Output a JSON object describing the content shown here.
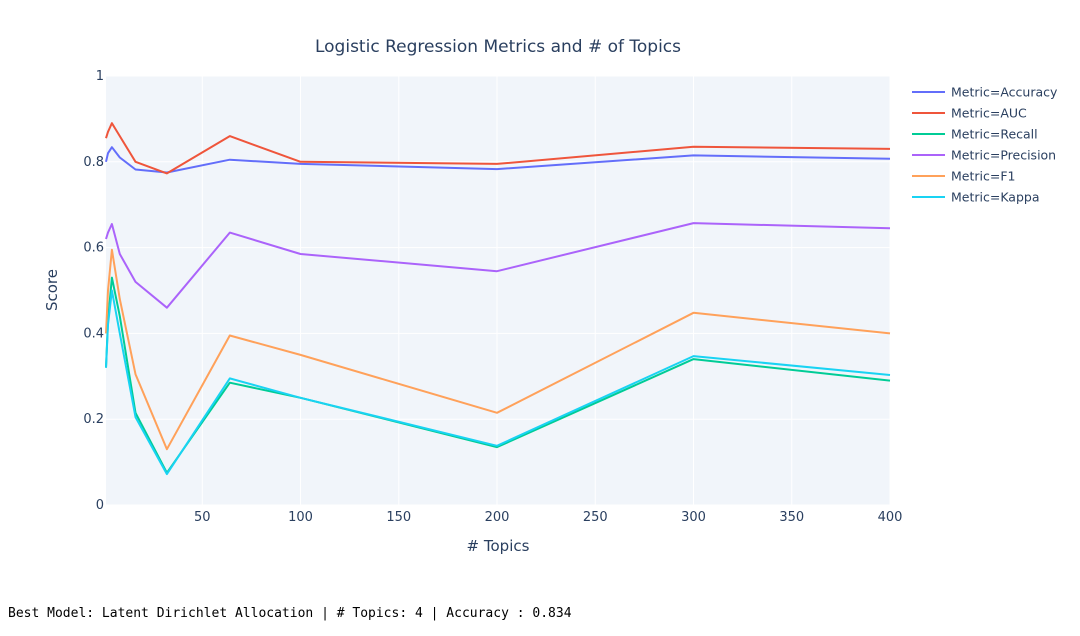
{
  "summary_text": "Best Model: Latent Dirichlet Allocation | # Topics: 4 | Accuracy : 0.834",
  "chart_data": {
    "type": "line",
    "title": "Logistic Regression Metrics and # of Topics",
    "xlabel": "# Topics",
    "ylabel": "Score",
    "xlim": [
      1,
      400
    ],
    "ylim": [
      0,
      1
    ],
    "x_ticks": [
      50,
      100,
      150,
      200,
      250,
      300,
      350,
      400
    ],
    "y_ticks": [
      0,
      0.2,
      0.4,
      0.6,
      0.8,
      1
    ],
    "y_tick_labels": [
      "0",
      "0.2",
      "0.4",
      "0.6",
      "0.8",
      "1"
    ],
    "grid": true,
    "legend_position": "top-right",
    "x": [
      1,
      2,
      4,
      8,
      16,
      32,
      64,
      100,
      200,
      300,
      400
    ],
    "series": [
      {
        "name": "Metric=Accuracy",
        "color": "#636efa",
        "values": [
          0.8,
          0.82,
          0.834,
          0.81,
          0.782,
          0.775,
          0.805,
          0.795,
          0.783,
          0.815,
          0.807
        ]
      },
      {
        "name": "Metric=AUC",
        "color": "#EF553B",
        "values": [
          0.855,
          0.87,
          0.89,
          0.86,
          0.8,
          0.773,
          0.86,
          0.8,
          0.795,
          0.835,
          0.83
        ]
      },
      {
        "name": "Metric=Recall",
        "color": "#00cc96",
        "values": [
          0.32,
          0.43,
          0.53,
          0.44,
          0.215,
          0.075,
          0.285,
          0.25,
          0.135,
          0.34,
          0.29
        ]
      },
      {
        "name": "Metric=Precision",
        "color": "#ab63fa",
        "values": [
          0.62,
          0.635,
          0.655,
          0.585,
          0.52,
          0.46,
          0.635,
          0.585,
          0.545,
          0.657,
          0.645
        ]
      },
      {
        "name": "Metric=F1",
        "color": "#FFA15A",
        "values": [
          0.4,
          0.5,
          0.595,
          0.48,
          0.305,
          0.13,
          0.395,
          0.35,
          0.215,
          0.448,
          0.4
        ]
      },
      {
        "name": "Metric=Kappa",
        "color": "#19d3f3",
        "values": [
          0.32,
          0.42,
          0.5,
          0.4,
          0.205,
          0.072,
          0.295,
          0.25,
          0.138,
          0.347,
          0.303
        ]
      }
    ]
  }
}
